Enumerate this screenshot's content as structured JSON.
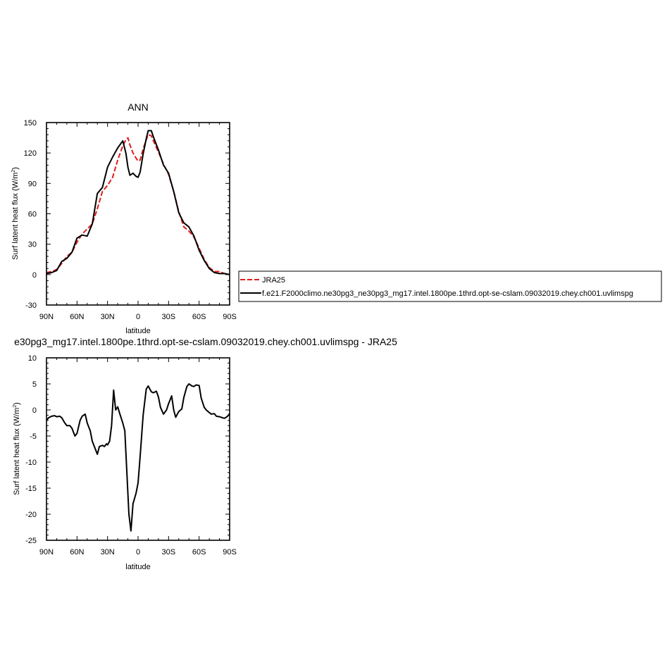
{
  "chart_data": [
    {
      "type": "line",
      "title": "ANN",
      "xlabel": "latitude",
      "ylabel": "Surf latent heat flux (W/m",
      "ylabel_sup": "2",
      "ylabel_close": ")",
      "x_tick_labels": [
        "90N",
        "60N",
        "30N",
        "0",
        "30S",
        "60S",
        "90S"
      ],
      "x_ticks": [
        90,
        60,
        30,
        0,
        -30,
        -60,
        -90
      ],
      "xlim": [
        90,
        -90
      ],
      "ylim": [
        -30,
        150
      ],
      "y_ticks": [
        -30,
        0,
        30,
        60,
        90,
        120,
        150
      ],
      "y_tick_labels": [
        "-30",
        "0",
        "30",
        "60",
        "90",
        "120",
        "150"
      ],
      "grid": false,
      "legend_position": "right",
      "x": [
        90,
        85,
        80,
        75,
        70,
        65,
        60,
        55,
        50,
        45,
        40,
        35,
        30,
        25,
        20,
        15,
        12,
        10,
        8,
        5,
        2,
        0,
        -2,
        -5,
        -8,
        -10,
        -13,
        -15,
        -20,
        -25,
        -30,
        -35,
        -40,
        -45,
        -50,
        -55,
        -60,
        -65,
        -70,
        -75,
        -80,
        -85,
        -90
      ],
      "series": [
        {
          "name": "JRA25",
          "color": "#e01c1c",
          "dash": "dashed",
          "values": [
            2,
            3,
            5,
            11,
            18,
            22,
            32,
            40,
            45,
            50,
            65,
            82,
            88,
            96,
            113,
            127,
            133,
            135,
            128,
            120,
            115,
            112,
            113,
            124,
            133,
            138,
            137,
            132,
            121,
            109,
            99,
            82,
            62,
            47,
            43,
            37,
            26,
            15,
            7,
            3,
            3,
            1,
            0
          ]
        },
        {
          "name": "f.e21.F2000climo.ne30pg3_ne30pg3_mg17.intel.1800pe.1thrd.opt-se-cslam.09032019.chey.ch001.uvlimspg",
          "color": "#000000",
          "dash": "solid",
          "values": [
            1,
            2,
            4,
            13,
            16,
            22,
            36,
            39,
            38,
            50,
            80,
            86,
            106,
            116,
            125,
            132,
            120,
            106,
            98,
            100,
            97,
            96,
            101,
            119,
            134,
            142,
            142,
            136,
            123,
            108,
            100,
            82,
            61,
            51,
            47,
            38,
            24,
            14,
            6,
            2,
            1,
            1,
            0
          ]
        }
      ]
    },
    {
      "type": "line",
      "title": "e30pg3_mg17.intel.1800pe.1thrd.opt-se-cslam.09032019.chey.ch001.uvlimspg - JRA25",
      "xlabel": "latitude",
      "ylabel": "Surf latent heat flux (W/m",
      "ylabel_sup": "2",
      "ylabel_close": ")",
      "x_tick_labels": [
        "90N",
        "60N",
        "30N",
        "0",
        "30S",
        "60S",
        "90S"
      ],
      "x_ticks": [
        90,
        60,
        30,
        0,
        -30,
        -60,
        -90
      ],
      "xlim": [
        90,
        -90
      ],
      "ylim": [
        -25,
        10
      ],
      "y_ticks": [
        -25,
        -20,
        -15,
        -10,
        -5,
        0,
        5,
        10
      ],
      "y_tick_labels": [
        "-25",
        "-20",
        "-15",
        "-10",
        "-5",
        "0",
        "5",
        "10"
      ],
      "grid": false,
      "x": [
        90,
        88,
        85,
        82,
        80,
        77,
        75,
        72,
        70,
        67,
        65,
        62,
        60,
        57,
        55,
        52,
        50,
        47,
        45,
        43,
        40,
        38,
        35,
        33,
        31,
        30,
        28,
        26,
        24,
        22,
        20,
        18,
        15,
        13,
        11,
        9,
        7,
        5,
        2,
        0,
        -2,
        -5,
        -8,
        -10,
        -13,
        -15,
        -18,
        -20,
        -22,
        -25,
        -28,
        -30,
        -33,
        -35,
        -37,
        -40,
        -43,
        -45,
        -48,
        -50,
        -53,
        -55,
        -57,
        -60,
        -62,
        -65,
        -67,
        -70,
        -72,
        -75,
        -77,
        -80,
        -83,
        -85,
        -88,
        -90
      ],
      "series": [
        {
          "name": "",
          "color": "#000000",
          "dash": "solid",
          "values": [
            -2,
            -1.5,
            -1.2,
            -1.1,
            -1.3,
            -1.2,
            -1.5,
            -2.5,
            -3,
            -3,
            -3.5,
            -5,
            -4.5,
            -2,
            -1.2,
            -0.8,
            -2.5,
            -4,
            -6,
            -7,
            -8.5,
            -7,
            -6.8,
            -7,
            -6.5,
            -6.7,
            -6,
            -3,
            3.8,
            0,
            0.6,
            -0.7,
            -2.5,
            -4,
            -12,
            -20,
            -23.2,
            -18,
            -16,
            -14,
            -9,
            -1,
            4,
            4.6,
            3.5,
            3.3,
            3.6,
            2.5,
            0.5,
            -0.8,
            0,
            1.2,
            2.7,
            0,
            -1.4,
            -0.3,
            0.2,
            2.4,
            4.5,
            5,
            4.6,
            4.5,
            4.8,
            4.7,
            2.3,
            0.5,
            0,
            -0.5,
            -0.8,
            -0.7,
            -1.2,
            -1.3,
            -1.5,
            -1.6,
            -1.2,
            -0.7
          ]
        }
      ]
    }
  ]
}
